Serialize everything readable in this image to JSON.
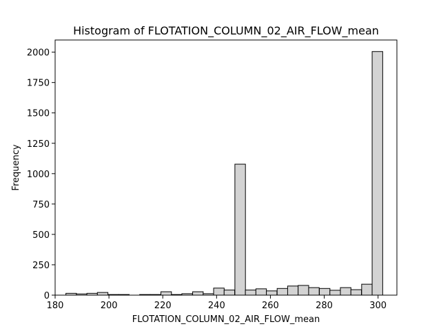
{
  "chart_data": {
    "type": "bar",
    "title": "Histogram of FLOTATION_COLUMN_02_AIR_FLOW_mean",
    "xlabel": "FLOTATION_COLUMN_02_AIR_FLOW_mean",
    "ylabel": "Frequency",
    "xlim": [
      180,
      307
    ],
    "ylim": [
      0,
      2100
    ],
    "xticks": [
      180,
      200,
      220,
      240,
      260,
      280,
      300
    ],
    "yticks": [
      0,
      250,
      500,
      750,
      1000,
      1250,
      1500,
      1750,
      2000
    ],
    "grid": false,
    "bar_color": "#d3d3d3",
    "edge_color": "#000000",
    "bin_width": 3.92,
    "bins": [
      {
        "x0": 184.0,
        "count": 15
      },
      {
        "x0": 187.9,
        "count": 10
      },
      {
        "x0": 191.8,
        "count": 15
      },
      {
        "x0": 195.7,
        "count": 22
      },
      {
        "x0": 199.7,
        "count": 5
      },
      {
        "x0": 203.6,
        "count": 5
      },
      {
        "x0": 207.5,
        "count": 0
      },
      {
        "x0": 211.4,
        "count": 5
      },
      {
        "x0": 215.4,
        "count": 5
      },
      {
        "x0": 219.3,
        "count": 28
      },
      {
        "x0": 223.2,
        "count": 5
      },
      {
        "x0": 227.1,
        "count": 12
      },
      {
        "x0": 231.1,
        "count": 28
      },
      {
        "x0": 235.0,
        "count": 12
      },
      {
        "x0": 238.9,
        "count": 58
      },
      {
        "x0": 242.8,
        "count": 42
      },
      {
        "x0": 246.8,
        "count": 1078
      },
      {
        "x0": 250.7,
        "count": 42
      },
      {
        "x0": 254.6,
        "count": 52
      },
      {
        "x0": 258.5,
        "count": 35
      },
      {
        "x0": 262.5,
        "count": 55
      },
      {
        "x0": 266.4,
        "count": 75
      },
      {
        "x0": 270.3,
        "count": 80
      },
      {
        "x0": 274.2,
        "count": 62
      },
      {
        "x0": 278.2,
        "count": 55
      },
      {
        "x0": 282.1,
        "count": 40
      },
      {
        "x0": 286.0,
        "count": 62
      },
      {
        "x0": 289.9,
        "count": 45
      },
      {
        "x0": 293.9,
        "count": 90
      },
      {
        "x0": 297.8,
        "count": 2005
      }
    ]
  }
}
